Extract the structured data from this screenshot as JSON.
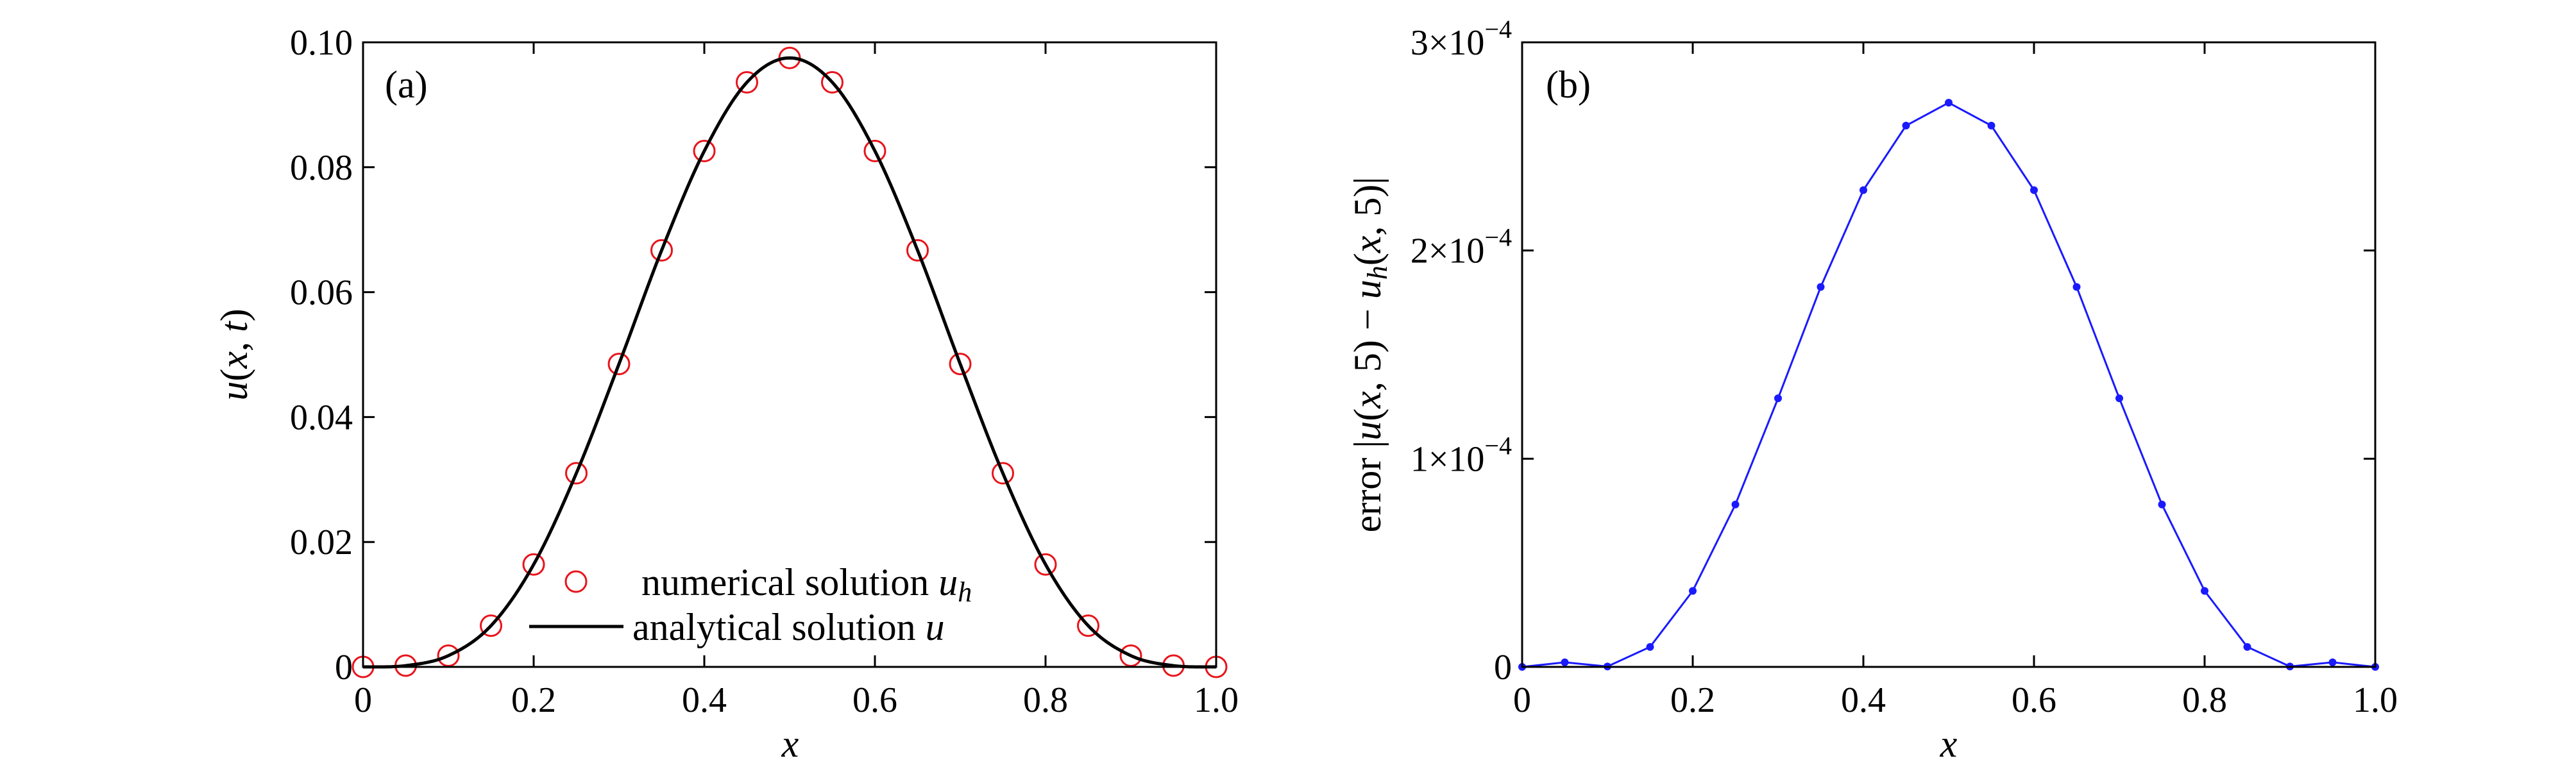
{
  "figure": {
    "panel_a_label": "(a)",
    "panel_b_label": "(b)"
  },
  "chart_data": [
    {
      "type": "line",
      "panel": "(a)",
      "xlabel": "x",
      "ylabel": "u(x, t)",
      "xlim": [
        0,
        1.0
      ],
      "ylim": [
        0,
        0.1
      ],
      "x_ticks": [
        "0",
        "0.2",
        "0.4",
        "0.6",
        "0.8",
        "1.0"
      ],
      "y_ticks": [
        "0",
        "0.02",
        "0.04",
        "0.06",
        "0.08",
        "0.10"
      ],
      "legend_position": "bottom-center",
      "series": [
        {
          "name": "numerical solution u_h",
          "style": "markers",
          "marker": "circle",
          "color": "#e8141b",
          "x": [
            0,
            0.05,
            0.1,
            0.15,
            0.2,
            0.25,
            0.3,
            0.35,
            0.4,
            0.45,
            0.5,
            0.55,
            0.6,
            0.65,
            0.7,
            0.75,
            0.8,
            0.85,
            0.9,
            0.95,
            1.0
          ],
          "y": [
            0.0,
            0.0002,
            0.0018,
            0.0066,
            0.0164,
            0.031,
            0.0485,
            0.0667,
            0.0826,
            0.0936,
            0.0975,
            0.0936,
            0.0826,
            0.0667,
            0.0485,
            0.031,
            0.0164,
            0.0066,
            0.0018,
            0.0002,
            0.0
          ]
        },
        {
          "name": "analytical solution u",
          "style": "line",
          "color": "#000000",
          "x": [
            0,
            0.05,
            0.1,
            0.15,
            0.2,
            0.25,
            0.3,
            0.35,
            0.4,
            0.45,
            0.5,
            0.55,
            0.6,
            0.65,
            0.7,
            0.75,
            0.8,
            0.85,
            0.9,
            0.95,
            1.0
          ],
          "y": [
            0.0,
            0.0002,
            0.0018,
            0.0066,
            0.0164,
            0.031,
            0.0485,
            0.0667,
            0.0826,
            0.0936,
            0.0975,
            0.0936,
            0.0826,
            0.0667,
            0.0485,
            0.031,
            0.0164,
            0.0066,
            0.0018,
            0.0002,
            0.0
          ]
        }
      ]
    },
    {
      "type": "line",
      "panel": "(b)",
      "xlabel": "x",
      "ylabel": "error |u(x,5) − u_h(x,5)|",
      "xlim": [
        0,
        1.0
      ],
      "ylim": [
        0,
        0.0003
      ],
      "x_ticks": [
        "0",
        "0.2",
        "0.4",
        "0.6",
        "0.8",
        "1.0"
      ],
      "y_ticks": [
        {
          "value": 0,
          "base": "0",
          "exp": ""
        },
        {
          "value": 0.0001,
          "base": "1×10",
          "exp": "−4"
        },
        {
          "value": 0.0002,
          "base": "2×10",
          "exp": "−4"
        },
        {
          "value": 0.0003,
          "base": "3×10",
          "exp": "−4"
        }
      ],
      "series": [
        {
          "style": "line+markers",
          "color": "#1a1aff",
          "x": [
            0,
            0.05,
            0.1,
            0.15,
            0.2,
            0.25,
            0.3,
            0.35,
            0.4,
            0.45,
            0.5,
            0.55,
            0.6,
            0.65,
            0.7,
            0.75,
            0.8,
            0.85,
            0.9,
            0.95,
            1.0
          ],
          "y": [
            0.0,
            2.2e-06,
            2e-07,
            9.6e-06,
            3.65e-05,
            7.8e-05,
            0.000129,
            0.0001825,
            0.000229,
            0.00026,
            0.000271,
            0.00026,
            0.000229,
            0.0001825,
            0.000129,
            7.8e-05,
            3.65e-05,
            9.6e-06,
            2e-07,
            2.2e-06,
            0.0
          ]
        }
      ]
    }
  ]
}
